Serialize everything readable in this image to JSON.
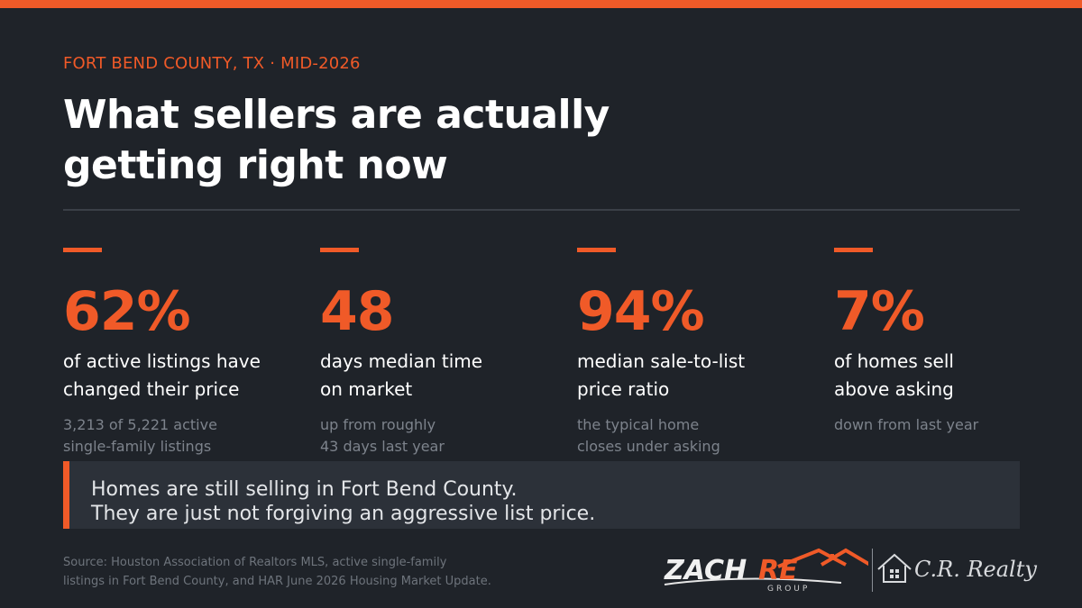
{
  "header": {
    "eyebrow": "FORT BEND COUNTY, TX  ·  MID-2026",
    "headline_line1": "What sellers are actually",
    "headline_line2": "getting right now"
  },
  "stats": [
    {
      "value": "62%",
      "label_line1": "of active listings have",
      "label_line2": "changed their price",
      "note_line1": "3,213 of 5,221 active",
      "note_line2": "single-family listings"
    },
    {
      "value": "48",
      "label_line1": "days median time",
      "label_line2": "on market",
      "note_line1": "up from roughly",
      "note_line2": "43 days last year"
    },
    {
      "value": "94%",
      "label_line1": "median sale-to-list",
      "label_line2": "price ratio",
      "note_line1": "the typical home",
      "note_line2": "closes under asking"
    },
    {
      "value": "7%",
      "label_line1": "of homes sell",
      "label_line2": "above asking",
      "note_line1": "down from last year",
      "note_line2": ""
    }
  ],
  "callout": {
    "line1": "Homes are still selling in Fort Bend County.",
    "line2": "They are just not forgiving an aggressive list price."
  },
  "footer": {
    "source_line1": "Source: Houston Association of Realtors MLS, active single-family",
    "source_line2": "listings in Fort Bend County, and HAR June 2026 Housing Market Update.",
    "logo_zach": "ZACHRE",
    "logo_group": "GROUP",
    "logo_cr": "C.R. Realty"
  },
  "colors": {
    "accent": "#f05a28",
    "background": "#1f2329",
    "callout_bg": "#2c3139",
    "muted_text": "#7d838c"
  }
}
